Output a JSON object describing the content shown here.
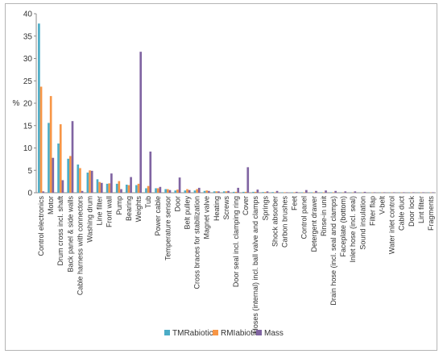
{
  "chart_data": {
    "type": "bar",
    "title": "",
    "xlabel": "",
    "ylabel": "%",
    "ylim": [
      0,
      40
    ],
    "yticks": [
      0,
      5,
      10,
      15,
      20,
      25,
      30,
      35,
      40
    ],
    "grid": false,
    "legend_position": "bottom",
    "categories": [
      "Control electronics",
      "Motor",
      "Drum cross incl. shaft",
      "Back panel & side walls",
      "Cable harness with connectors",
      "Washing drum",
      "Line filter",
      "Front wall",
      "Pump",
      "Bearing",
      "Weights",
      "Tub",
      "Power cable",
      "Temperature sensor",
      "Door",
      "Belt pulley",
      "Cross braces for stabilization",
      "Magnet valve",
      "Heating",
      "Screws",
      "Door seal incl. clamping ring",
      "Cover",
      "Hoses (internal) incl. ball valve and clamps",
      "Springs",
      "Shock absorber",
      "Carbon brushes",
      "Feet",
      "Control panel",
      "Detergent drawer",
      "Rinse-in unit",
      "Drain hose (incl. seal and clamps)",
      "Faceplate (bottom)",
      "Inlet hose (incl. seal)",
      "Sound insulation",
      "Filter flap",
      "V-belt",
      "Water inlet control",
      "Cable duct",
      "Door lock",
      "Lint filter",
      "Fragments"
    ],
    "series": [
      {
        "name": "TMRabiotic",
        "color": "#4bacc6",
        "values": [
          37.8,
          15.6,
          11.0,
          7.6,
          6.3,
          4.5,
          3.0,
          2.0,
          2.0,
          1.8,
          1.7,
          1.0,
          1.0,
          0.8,
          0.5,
          0.5,
          0.5,
          0.4,
          0.3,
          0.3,
          0.2,
          0.2,
          0.2,
          0.15,
          0.15,
          0.1,
          0.1,
          0.1,
          0.1,
          0.1,
          0.1,
          0.05,
          0.05,
          0.05,
          0.05,
          0.05,
          0.05,
          0.05,
          0.05,
          0.05,
          0.05
        ]
      },
      {
        "name": "RMIabiotic",
        "color": "#f79646",
        "values": [
          23.7,
          21.6,
          15.3,
          8.2,
          5.5,
          5.0,
          2.4,
          2.1,
          2.6,
          1.7,
          2.0,
          1.5,
          1.0,
          0.8,
          0.7,
          0.8,
          0.8,
          0.5,
          0.3,
          0.3,
          0.2,
          0.2,
          0.2,
          0.15,
          0.1,
          0.1,
          0.1,
          0.1,
          0.1,
          0.1,
          0.1,
          0.05,
          0.05,
          0.05,
          0.05,
          0.05,
          0.05,
          0.05,
          0.05,
          0.05,
          0.05
        ]
      },
      {
        "name": "Mass",
        "color": "#8064a2",
        "values": [
          0.3,
          7.8,
          2.8,
          16.0,
          0.4,
          4.9,
          2.2,
          4.3,
          0.8,
          3.5,
          31.5,
          9.2,
          1.3,
          0.6,
          3.4,
          0.6,
          1.1,
          0.4,
          0.3,
          0.4,
          1.1,
          5.7,
          0.7,
          0.3,
          0.4,
          0.1,
          0.2,
          0.6,
          0.4,
          0.5,
          0.4,
          0.3,
          0.3,
          0.2,
          0.1,
          0.1,
          0.1,
          0.1,
          0.1,
          0.1,
          0.1
        ]
      }
    ]
  }
}
